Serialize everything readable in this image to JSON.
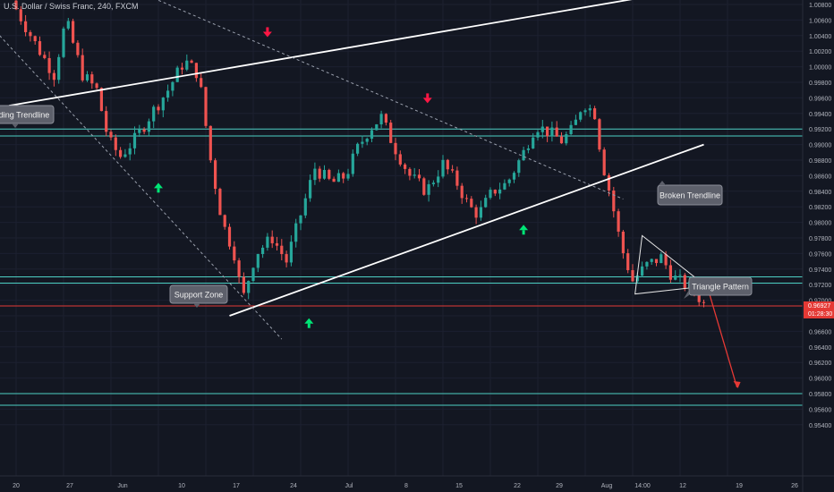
{
  "header": {
    "title": "U.S. Dollar / Swiss Franc, 240, FXCM"
  },
  "theme": {
    "background": "#131722",
    "up_color": "#26a69a",
    "down_color": "#ef5350",
    "zone_line": "#4dd0c4",
    "price_line": "#e53935",
    "axis_text": "#b2b5be",
    "signal_up": "#00e676",
    "signal_down": "#ff1744"
  },
  "chart_data": {
    "type": "candlestick",
    "instrument": "U.S. Dollar / Swiss Franc",
    "timeframe": "240",
    "source": "FXCM",
    "x_ticks": [
      "20",
      "27",
      "Jun",
      "10",
      "17",
      "24",
      "Jul",
      "8",
      "15",
      "22",
      "29",
      "Aug",
      "14:00",
      "12",
      "19",
      "26"
    ],
    "y_ticks": [
      "1.00800",
      "1.00600",
      "1.00400",
      "1.00200",
      "1.00000",
      "0.99800",
      "0.99600",
      "0.99400",
      "0.99200",
      "0.99000",
      "0.98800",
      "0.98600",
      "0.98400",
      "0.98200",
      "0.98000",
      "0.97800",
      "0.97600",
      "0.97400",
      "0.97200",
      "0.97000",
      "0.96800",
      "0.96600",
      "0.96400",
      "0.96200",
      "0.96000",
      "0.95800",
      "0.95600",
      "0.95400"
    ],
    "ylim": [
      0.954,
      1.009
    ],
    "current_price": "0.96927",
    "countdown": "01:28:30",
    "price_path": [
      [
        0.0,
        1.0085
      ],
      [
        1.0,
        1.003
      ],
      [
        1.8,
        0.999
      ],
      [
        2.3,
        1.006
      ],
      [
        3.0,
        0.999
      ],
      [
        3.6,
        0.997
      ],
      [
        4.1,
        0.9905
      ],
      [
        4.6,
        0.9885
      ],
      [
        5.3,
        0.991
      ],
      [
        5.9,
        0.994
      ],
      [
        6.6,
        0.997
      ],
      [
        7.3,
        1.0008
      ],
      [
        7.9,
        0.999
      ],
      [
        8.4,
        0.988
      ],
      [
        8.9,
        0.98
      ],
      [
        9.4,
        0.976
      ],
      [
        9.75,
        0.97
      ],
      [
        10.3,
        0.976
      ],
      [
        11.0,
        0.978
      ],
      [
        11.6,
        0.975
      ],
      [
        12.2,
        0.981
      ],
      [
        12.8,
        0.987
      ],
      [
        13.5,
        0.985
      ],
      [
        14.1,
        0.986
      ],
      [
        14.6,
        0.9895
      ],
      [
        15.1,
        0.992
      ],
      [
        15.6,
        0.9935
      ],
      [
        16.1,
        0.99
      ],
      [
        16.8,
        0.986
      ],
      [
        17.5,
        0.984
      ],
      [
        18.2,
        0.9875
      ],
      [
        18.8,
        0.985
      ],
      [
        19.3,
        0.982
      ],
      [
        19.7,
        0.981
      ],
      [
        20.3,
        0.984
      ],
      [
        20.9,
        0.985
      ],
      [
        21.6,
        0.989
      ],
      [
        22.1,
        0.9925
      ],
      [
        22.7,
        0.9915
      ],
      [
        23.2,
        0.9905
      ],
      [
        23.7,
        0.992
      ],
      [
        24.1,
        0.9955
      ],
      [
        24.6,
        0.994
      ],
      [
        24.9,
        0.988
      ],
      [
        25.3,
        0.983
      ],
      [
        25.7,
        0.977
      ],
      [
        26.2,
        0.9725
      ],
      [
        26.8,
        0.9745
      ],
      [
        27.4,
        0.9755
      ],
      [
        27.9,
        0.973
      ],
      [
        28.4,
        0.972
      ],
      [
        28.9,
        0.9712
      ],
      [
        29.1,
        0.9695
      ]
    ],
    "support_zones": [
      {
        "label": "upper_zone",
        "top": 0.992,
        "bottom": 0.9911
      },
      {
        "label": "support_zone",
        "top": 0.973,
        "bottom": 0.9722
      },
      {
        "label": "bottom_zone",
        "top": 0.958,
        "bottom": 0.9565
      }
    ],
    "trendlines": [
      {
        "name": "upper_rising",
        "style": "solid",
        "from": [
          -0.3,
          0.995
        ],
        "to": [
          26.6,
          1.009
        ]
      },
      {
        "name": "rising_support",
        "style": "solid",
        "from": [
          9.0,
          0.968
        ],
        "to": [
          29.0,
          0.99
        ]
      },
      {
        "name": "falling_dotted_1",
        "style": "dashed",
        "from": [
          -1.0,
          1.005
        ],
        "to": [
          11.2,
          0.965
        ]
      },
      {
        "name": "falling_dotted_2",
        "style": "dashed",
        "from": [
          5.8,
          1.0088
        ],
        "to": [
          25.6,
          0.983
        ]
      }
    ],
    "triangle": {
      "apex": [
        29.1,
        0.9718
      ],
      "top": [
        26.4,
        0.9783
      ],
      "bottom": [
        26.1,
        0.9708
      ]
    },
    "projection": {
      "from": [
        29.2,
        0.9712
      ],
      "to": [
        30.4,
        0.9588
      ]
    },
    "signals": [
      {
        "dir": "up",
        "x": 6.0,
        "y": 0.9844
      },
      {
        "dir": "down",
        "x": 10.6,
        "y": 1.0045
      },
      {
        "dir": "up",
        "x": 12.35,
        "y": 0.967
      },
      {
        "dir": "down",
        "x": 17.35,
        "y": 0.996
      },
      {
        "dir": "up",
        "x": 21.4,
        "y": 0.979
      }
    ],
    "annotations": [
      {
        "text": "Rising Trendline",
        "visible_text": "ding Trendline"
      },
      {
        "text": "Support Zone"
      },
      {
        "text": "Broken Trendline"
      },
      {
        "text": "Triangle Pattern"
      }
    ]
  }
}
